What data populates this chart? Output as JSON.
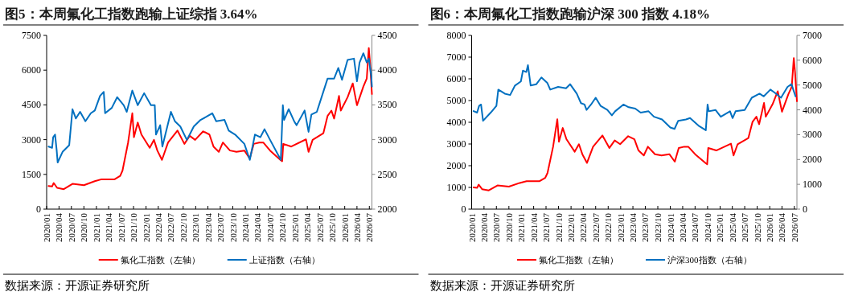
{
  "chart_data": [
    {
      "type": "line",
      "title": "图5：本周氟化工指数跑输上证综指 3.64%",
      "xlim": [
        "2020-01-01",
        "2026-07-20"
      ],
      "xticks": [
        {
          "value": "2020-01",
          "label": "2020/01"
        },
        {
          "value": "2020-04",
          "label": "2020/04"
        },
        {
          "value": "2020-07",
          "label": "2020/07"
        },
        {
          "value": "2020-10",
          "label": "2020/10"
        },
        {
          "value": "2021-01",
          "label": "2021/01"
        },
        {
          "value": "2021-04",
          "label": "2021/04"
        },
        {
          "value": "2021-07",
          "label": "2021/07"
        },
        {
          "value": "2021-10",
          "label": "2021/10"
        },
        {
          "value": "2022-01",
          "label": "2022/01"
        },
        {
          "value": "2022-04",
          "label": "2022/04"
        },
        {
          "value": "2022-07",
          "label": "2022/07"
        },
        {
          "value": "2022-10",
          "label": "2022/10"
        },
        {
          "value": "2023-01",
          "label": "2023/01"
        },
        {
          "value": "2023-04",
          "label": "2023/04"
        },
        {
          "value": "2023-07",
          "label": "2023/07"
        },
        {
          "value": "2023-10",
          "label": "2023/10"
        },
        {
          "value": "2024-01",
          "label": "2024/01"
        },
        {
          "value": "2024-04",
          "label": "2024/04"
        },
        {
          "value": "2024-07",
          "label": "2024/07"
        },
        {
          "value": "2024-10",
          "label": "2024/10"
        },
        {
          "value": "2025-01",
          "label": "2025/01"
        },
        {
          "value": "2025-04",
          "label": "2025/04"
        },
        {
          "value": "2025-07",
          "label": "2025/07"
        },
        {
          "value": "2025-10",
          "label": "2025/10"
        },
        {
          "value": "2026-01",
          "label": "2026/01"
        },
        {
          "value": "2026-04",
          "label": "2026/04"
        },
        {
          "value": "2026-07",
          "label": "2026/07"
        }
      ],
      "ylim": [
        0,
        7500
      ],
      "yticks": [
        0,
        1500,
        3000,
        4500,
        6000,
        7500
      ],
      "y2lim": [
        2000,
        4500
      ],
      "y2ticks": [
        2000,
        2500,
        3000,
        3500,
        4000,
        4500
      ],
      "legend": "bottom",
      "series": [
        {
          "name": "氟化工指数（左轴）",
          "color": "#ff0000",
          "x": [
            "2020-01-15",
            "2020-02-10",
            "2020-02-22",
            "2020-03-18",
            "2020-05-06",
            "2020-07-09",
            "2020-10-01",
            "2020-12-20",
            "2021-02-08",
            "2021-05-15",
            "2021-06-25",
            "2021-07-12",
            "2021-08-22",
            "2021-09-22",
            "2021-10-04",
            "2021-11-01",
            "2021-11-28",
            "2022-01-28",
            "2022-02-28",
            "2022-03-25",
            "2022-04-28",
            "2022-06-12",
            "2022-08-20",
            "2022-10-10",
            "2022-11-18",
            "2022-12-28",
            "2023-02-25",
            "2023-04-12",
            "2023-05-12",
            "2023-06-20",
            "2023-07-20",
            "2023-09-10",
            "2023-10-28",
            "2023-12-25",
            "2024-02-03",
            "2024-03-03",
            "2024-04-12",
            "2024-05-12",
            "2024-07-01",
            "2024-09-18",
            "2024-09-28",
            "2024-10-06",
            "2024-12-04",
            "2025-03-22",
            "2025-04-10",
            "2025-05-10",
            "2025-07-28",
            "2025-08-28",
            "2025-09-25",
            "2025-10-15",
            "2025-11-20",
            "2025-12-03",
            "2026-01-22",
            "2026-03-01",
            "2026-04-01",
            "2026-05-18",
            "2026-06-12",
            "2026-06-27",
            "2026-07-06",
            "2026-07-20"
          ],
          "values": [
            1000,
            978,
            1127,
            920,
            862,
            1092,
            1035,
            1207,
            1288,
            1288,
            1437,
            1667,
            2875,
            4140,
            3105,
            3737,
            3220,
            2645,
            2990,
            2530,
            2127,
            2875,
            3392,
            2817,
            3162,
            2990,
            3358,
            3220,
            2702,
            2472,
            2875,
            2530,
            2472,
            2530,
            2185,
            2817,
            2875,
            2875,
            2530,
            2110,
            2070,
            2817,
            2702,
            3013,
            2472,
            2990,
            3277,
            4025,
            4255,
            3910,
            4887,
            4255,
            4830,
            5428,
            4485,
            5290,
            5635,
            6957,
            6325,
            4968
          ]
        },
        {
          "name": "上证指数（右轴）",
          "color": "#0070c0",
          "axis": "y2",
          "x": [
            "2020-01-15",
            "2020-02-10",
            "2020-02-18",
            "2020-03-03",
            "2020-03-15",
            "2020-03-22",
            "2020-04-27",
            "2020-06-15",
            "2020-07-09",
            "2020-08-03",
            "2020-09-03",
            "2020-10-12",
            "2020-11-21",
            "2020-12-20",
            "2021-01-28",
            "2021-02-24",
            "2021-03-06",
            "2021-04-24",
            "2021-06-03",
            "2021-07-21",
            "2021-08-12",
            "2021-09-22",
            "2021-11-01",
            "2021-12-18",
            "2022-02-06",
            "2022-03-06",
            "2022-03-15",
            "2022-04-15",
            "2022-05-01",
            "2022-07-03",
            "2022-08-01",
            "2022-09-10",
            "2022-10-28",
            "2022-11-18",
            "2022-12-18",
            "2023-02-06",
            "2023-03-15",
            "2023-05-03",
            "2023-06-01",
            "2023-08-01",
            "2023-09-01",
            "2023-10-18",
            "2023-12-25",
            "2024-02-03",
            "2024-03-12",
            "2024-04-21",
            "2024-05-21",
            "2024-07-01",
            "2024-09-18",
            "2024-10-03",
            "2024-10-12",
            "2024-11-15",
            "2024-12-25",
            "2025-01-12",
            "2025-03-12",
            "2025-04-10",
            "2025-05-01",
            "2025-06-10",
            "2025-07-18",
            "2025-08-28",
            "2025-10-15",
            "2025-11-15",
            "2025-12-12",
            "2026-01-22",
            "2026-03-10",
            "2026-04-01",
            "2026-04-20",
            "2026-05-18",
            "2026-06-12",
            "2026-06-27",
            "2026-07-15",
            "2026-07-20"
          ],
          "values": [
            2900,
            2882,
            3035,
            3073,
            2843,
            2671,
            2824,
            2920,
            3438,
            3304,
            3400,
            3265,
            3380,
            3419,
            3630,
            3687,
            3380,
            3457,
            3611,
            3495,
            3400,
            3706,
            3495,
            3668,
            3495,
            3495,
            3073,
            3208,
            2901,
            3400,
            3265,
            3189,
            2997,
            3073,
            3189,
            3284,
            3323,
            3380,
            3265,
            3284,
            3131,
            3073,
            2939,
            2709,
            3073,
            3035,
            3150,
            2997,
            2709,
            3495,
            3284,
            3438,
            3265,
            3208,
            3419,
            3112,
            3361,
            3400,
            3630,
            3879,
            3879,
            4032,
            3860,
            4147,
            4166,
            3840,
            4109,
            4243,
            4109,
            4166,
            3917,
            3764
          ]
        }
      ],
      "annotations": [
        "数据来源：开源证券研究所"
      ]
    },
    {
      "type": "line",
      "title": "图6：本周氟化工指数跑输沪深 300 指数 4.18%",
      "xlim": [
        "2020-01-01",
        "2026-07-20"
      ],
      "xticks": [
        {
          "value": "2020-01",
          "label": "2020/01"
        },
        {
          "value": "2020-04",
          "label": "2020/04"
        },
        {
          "value": "2020-07",
          "label": "2020/07"
        },
        {
          "value": "2020-10",
          "label": "2020/10"
        },
        {
          "value": "2021-01",
          "label": "2021/01"
        },
        {
          "value": "2021-04",
          "label": "2021/04"
        },
        {
          "value": "2021-07",
          "label": "2021/07"
        },
        {
          "value": "2021-10",
          "label": "2021/10"
        },
        {
          "value": "2022-01",
          "label": "2022/01"
        },
        {
          "value": "2022-04",
          "label": "2022/04"
        },
        {
          "value": "2022-07",
          "label": "2022/07"
        },
        {
          "value": "2022-10",
          "label": "2022/10"
        },
        {
          "value": "2023-01",
          "label": "2023/01"
        },
        {
          "value": "2023-04",
          "label": "2023/04"
        },
        {
          "value": "2023-07",
          "label": "2023/07"
        },
        {
          "value": "2023-10",
          "label": "2023/10"
        },
        {
          "value": "2024-01",
          "label": "2024/01"
        },
        {
          "value": "2024-04",
          "label": "2024/04"
        },
        {
          "value": "2024-07",
          "label": "2024/07"
        },
        {
          "value": "2024-10",
          "label": "2024/10"
        },
        {
          "value": "2025-01",
          "label": "2025/01"
        },
        {
          "value": "2025-04",
          "label": "2025/04"
        },
        {
          "value": "2025-07",
          "label": "2025/07"
        },
        {
          "value": "2025-10",
          "label": "2025/10"
        },
        {
          "value": "2026-01",
          "label": "2026/01"
        },
        {
          "value": "2026-04",
          "label": "2026/04"
        },
        {
          "value": "2026-07",
          "label": "2026/07"
        }
      ],
      "ylim": [
        0,
        8000
      ],
      "yticks": [
        0,
        1000,
        2000,
        3000,
        4000,
        5000,
        6000,
        7000,
        8000
      ],
      "y2lim": [
        0,
        7000
      ],
      "y2ticks": [
        0,
        1000,
        2000,
        3000,
        4000,
        5000,
        6000,
        7000
      ],
      "legend": "bottom",
      "series": [
        {
          "name": "氟化工指数（左轴）",
          "color": "#ff0000",
          "x": [
            "2020-01-15",
            "2020-02-10",
            "2020-02-22",
            "2020-03-18",
            "2020-05-06",
            "2020-07-09",
            "2020-10-01",
            "2020-12-20",
            "2021-02-08",
            "2021-05-15",
            "2021-06-25",
            "2021-07-12",
            "2021-08-22",
            "2021-09-22",
            "2021-10-04",
            "2021-11-01",
            "2021-11-28",
            "2022-01-28",
            "2022-02-28",
            "2022-03-25",
            "2022-04-28",
            "2022-06-12",
            "2022-08-20",
            "2022-10-10",
            "2022-11-18",
            "2022-12-28",
            "2023-02-25",
            "2023-04-12",
            "2023-05-12",
            "2023-06-20",
            "2023-07-20",
            "2023-09-10",
            "2023-10-28",
            "2023-12-25",
            "2024-02-03",
            "2024-03-03",
            "2024-04-12",
            "2024-05-12",
            "2024-07-01",
            "2024-09-18",
            "2024-09-28",
            "2024-10-06",
            "2024-12-04",
            "2025-03-22",
            "2025-04-10",
            "2025-05-10",
            "2025-07-28",
            "2025-08-28",
            "2025-09-25",
            "2025-10-15",
            "2025-11-20",
            "2025-12-03",
            "2026-01-22",
            "2026-03-01",
            "2026-04-01",
            "2026-05-18",
            "2026-06-12",
            "2026-06-27",
            "2026-07-06",
            "2026-07-20"
          ],
          "values": [
            1000,
            978,
            1127,
            920,
            862,
            1092,
            1035,
            1207,
            1288,
            1288,
            1437,
            1667,
            2875,
            4140,
            3105,
            3737,
            3220,
            2645,
            2990,
            2530,
            2127,
            2875,
            3392,
            2817,
            3162,
            2990,
            3358,
            3220,
            2702,
            2472,
            2875,
            2530,
            2472,
            2530,
            2185,
            2817,
            2875,
            2875,
            2530,
            2110,
            2070,
            2817,
            2702,
            3013,
            2472,
            2990,
            3277,
            4025,
            4255,
            3910,
            4887,
            4255,
            4830,
            5428,
            4485,
            5290,
            5635,
            6957,
            6325,
            4968
          ]
        },
        {
          "name": "沪深300指数（右轴）",
          "color": "#0070c0",
          "axis": "y2",
          "x": [
            "2020-01-15",
            "2020-02-10",
            "2020-02-25",
            "2020-03-10",
            "2020-03-25",
            "2020-05-20",
            "2020-07-01",
            "2020-07-15",
            "2020-09-01",
            "2020-10-10",
            "2020-11-15",
            "2020-12-28",
            "2021-01-12",
            "2021-02-06",
            "2021-02-18",
            "2021-03-10",
            "2021-04-21",
            "2021-05-28",
            "2021-07-10",
            "2021-08-01",
            "2021-09-28",
            "2021-11-25",
            "2021-12-25",
            "2022-02-12",
            "2022-03-15",
            "2022-04-10",
            "2022-04-25",
            "2022-05-28",
            "2022-07-01",
            "2022-08-06",
            "2022-09-25",
            "2022-10-28",
            "2022-11-21",
            "2023-01-21",
            "2023-03-01",
            "2023-04-18",
            "2023-05-28",
            "2023-07-25",
            "2023-09-03",
            "2023-11-01",
            "2024-01-01",
            "2024-02-01",
            "2024-02-28",
            "2024-04-25",
            "2024-05-25",
            "2024-08-01",
            "2024-09-18",
            "2024-10-01",
            "2024-10-10",
            "2024-11-28",
            "2025-01-06",
            "2025-03-15",
            "2025-04-03",
            "2025-04-25",
            "2025-07-01",
            "2025-08-22",
            "2025-10-18",
            "2025-11-18",
            "2026-01-06",
            "2026-02-03",
            "2026-03-25",
            "2026-05-12",
            "2026-06-10",
            "2026-07-10"
          ],
          "values": [
            3950,
            3888,
            4161,
            4215,
            3560,
            3888,
            4161,
            4816,
            4652,
            4597,
            4980,
            5143,
            5580,
            5526,
            5799,
            4980,
            5034,
            5307,
            5089,
            4816,
            4925,
            4870,
            5034,
            4652,
            4270,
            4215,
            3997,
            4215,
            4488,
            4161,
            3997,
            3778,
            3942,
            4215,
            4106,
            4051,
            3888,
            3942,
            3724,
            3615,
            3287,
            3232,
            3560,
            3615,
            3669,
            3341,
            3178,
            4215,
            3942,
            3997,
            3724,
            3942,
            3669,
            3942,
            3997,
            4488,
            4652,
            4543,
            4816,
            4706,
            4488,
            4925,
            5034,
            4543
          ]
        }
      ],
      "annotations": [
        "数据来源：开源证券研究所"
      ]
    }
  ]
}
